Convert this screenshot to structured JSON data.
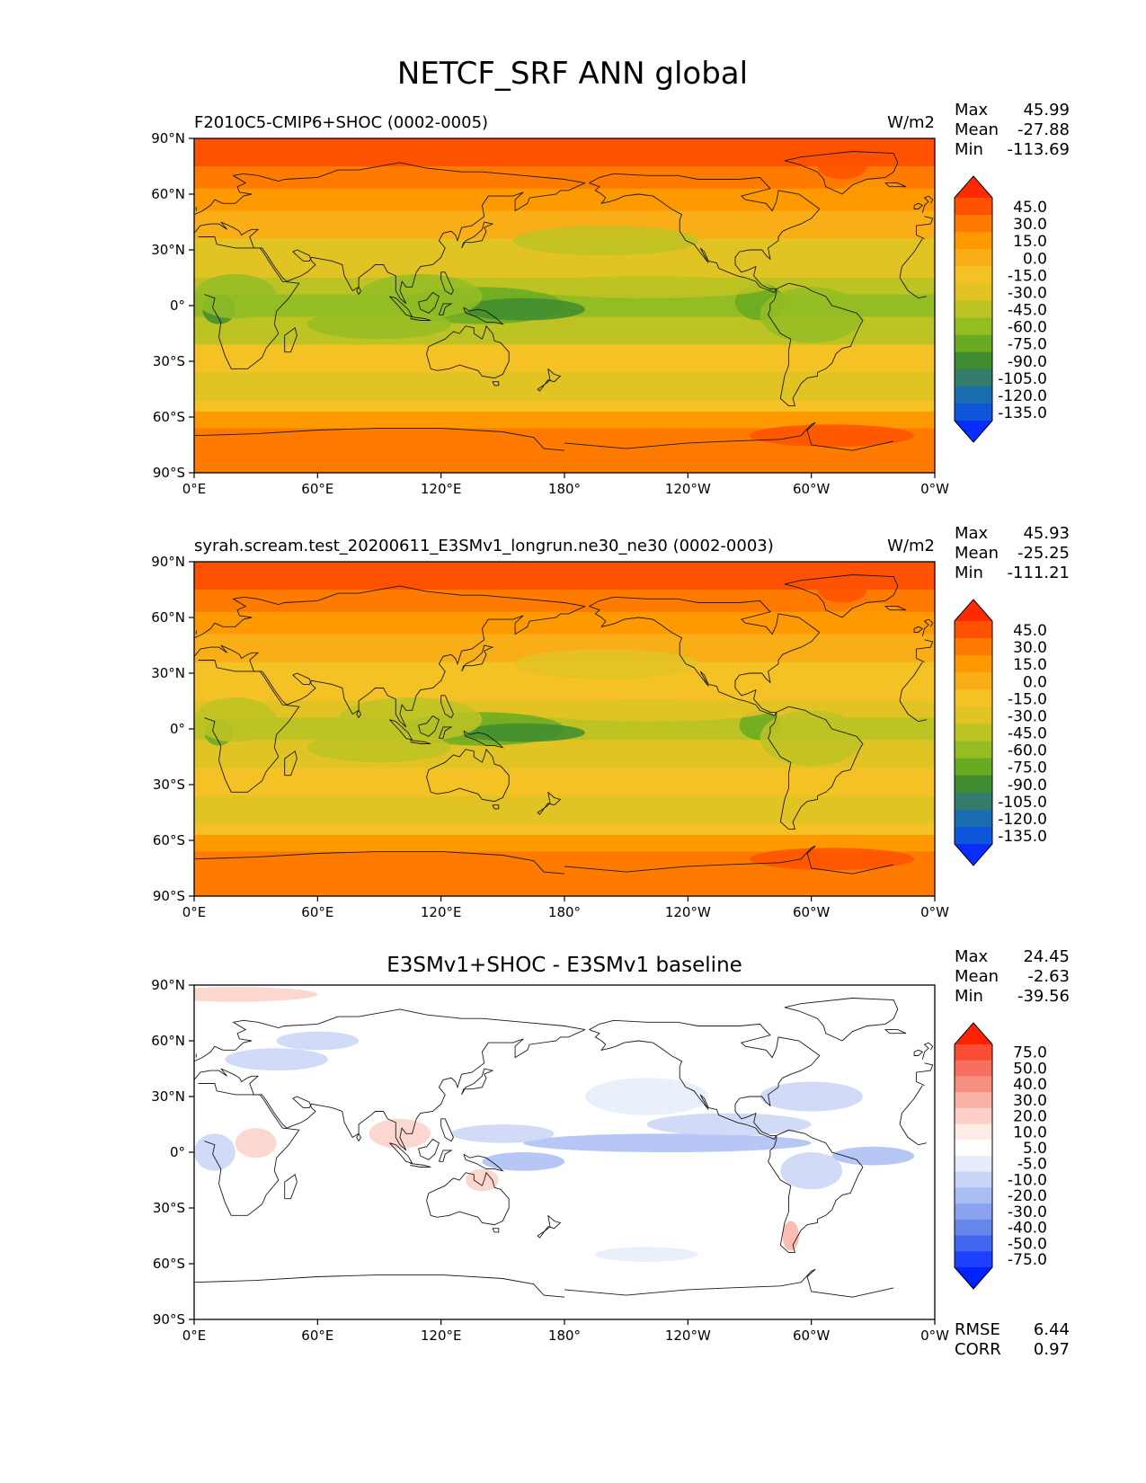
{
  "figure_title": "NETCF_SRF ANN global",
  "chart_data": [
    {
      "type": "heatmap",
      "map_projection": "PlateCarree",
      "title_left": "F2010C5-CMIP6+SHOC (0002-0005)",
      "units": "W/m2",
      "stats": [
        {
          "label": "Max",
          "value": "45.99"
        },
        {
          "label": "Mean",
          "value": "-27.88"
        },
        {
          "label": "Min",
          "value": "-113.69"
        }
      ],
      "x_ticks": [
        "0°E",
        "60°E",
        "120°E",
        "180°",
        "120°W",
        "60°W",
        "0°W"
      ],
      "y_ticks": [
        "90°N",
        "60°N",
        "30°N",
        "0°",
        "30°S",
        "60°S",
        "90°S"
      ],
      "colorbar_levels": [
        "45.0",
        "30.0",
        "15.0",
        "0.0",
        "-15.0",
        "-30.0",
        "-45.0",
        "-60.0",
        "-75.0",
        "-90.0",
        "-105.0",
        "-120.0",
        "-135.0"
      ],
      "colorbar_colors": [
        "#ff2a00",
        "#ff5200",
        "#ff7b00",
        "#ff9900",
        "#f9ae18",
        "#f4c224",
        "#e2c324",
        "#bec324",
        "#94bd24",
        "#69aa22",
        "#3f8c30",
        "#337c6a",
        "#1b6db1",
        "#0e55d9",
        "#0a2dff"
      ],
      "zonal_pattern": [
        {
          "lat": 90,
          "level": 1
        },
        {
          "lat": 75,
          "level": 2
        },
        {
          "lat": 62,
          "level": 3
        },
        {
          "lat": 50,
          "level": 4
        },
        {
          "lat": 35,
          "level": 6
        },
        {
          "lat": 15,
          "level": 7
        },
        {
          "lat": 5,
          "level": 8
        },
        {
          "lat": -5,
          "level": 7
        },
        {
          "lat": -20,
          "level": 5
        },
        {
          "lat": -35,
          "level": 6
        },
        {
          "lat": -50,
          "level": 5
        },
        {
          "lat": -58,
          "level": 3
        },
        {
          "lat": -65,
          "level": 2
        },
        {
          "lat": -90,
          "level": 2
        }
      ]
    },
    {
      "type": "heatmap",
      "map_projection": "PlateCarree",
      "title_left": "syrah.scream.test_20200611_E3SMv1_longrun.ne30_ne30 (0002-0003)",
      "units": "W/m2",
      "stats": [
        {
          "label": "Max",
          "value": "45.93"
        },
        {
          "label": "Mean",
          "value": "-25.25"
        },
        {
          "label": "Min",
          "value": "-111.21"
        }
      ],
      "x_ticks": [
        "0°E",
        "60°E",
        "120°E",
        "180°",
        "120°W",
        "60°W",
        "0°W"
      ],
      "y_ticks": [
        "90°N",
        "60°N",
        "30°N",
        "0°",
        "30°S",
        "60°S",
        "90°S"
      ],
      "colorbar_levels": [
        "45.0",
        "30.0",
        "15.0",
        "0.0",
        "-15.0",
        "-30.0",
        "-45.0",
        "-60.0",
        "-75.0",
        "-90.0",
        "-105.0",
        "-120.0",
        "-135.0"
      ],
      "colorbar_colors": [
        "#ff2a00",
        "#ff5200",
        "#ff7b00",
        "#ff9900",
        "#f9ae18",
        "#f4c224",
        "#e2c324",
        "#bec324",
        "#94bd24",
        "#69aa22",
        "#3f8c30",
        "#337c6a",
        "#1b6db1",
        "#0e55d9",
        "#0a2dff"
      ],
      "zonal_pattern": [
        {
          "lat": 90,
          "level": 1
        },
        {
          "lat": 75,
          "level": 2
        },
        {
          "lat": 62,
          "level": 3
        },
        {
          "lat": 50,
          "level": 4
        },
        {
          "lat": 35,
          "level": 5
        },
        {
          "lat": 15,
          "level": 6
        },
        {
          "lat": 5,
          "level": 7
        },
        {
          "lat": -5,
          "level": 6
        },
        {
          "lat": -20,
          "level": 5
        },
        {
          "lat": -35,
          "level": 6
        },
        {
          "lat": -50,
          "level": 5
        },
        {
          "lat": -58,
          "level": 3
        },
        {
          "lat": -65,
          "level": 2
        },
        {
          "lat": -90,
          "level": 2
        }
      ]
    },
    {
      "type": "heatmap",
      "map_projection": "PlateCarree",
      "title_center": "E3SMv1+SHOC - E3SMv1 baseline",
      "stats": [
        {
          "label": "Max",
          "value": "24.45"
        },
        {
          "label": "Mean",
          "value": "-2.63"
        },
        {
          "label": "Min",
          "value": "-39.56"
        }
      ],
      "bottom_stats": [
        {
          "label": "RMSE",
          "value": "6.44"
        },
        {
          "label": "CORR",
          "value": "0.97"
        }
      ],
      "x_ticks": [
        "0°E",
        "60°E",
        "120°E",
        "180°",
        "120°W",
        "60°W",
        "0°W"
      ],
      "y_ticks": [
        "90°N",
        "60°N",
        "30°N",
        "0°",
        "30°S",
        "60°S",
        "90°S"
      ],
      "colorbar_levels": [
        "75.0",
        "50.0",
        "40.0",
        "30.0",
        "20.0",
        "10.0",
        "5.0",
        "-5.0",
        "-10.0",
        "-20.0",
        "-30.0",
        "-40.0",
        "-50.0",
        "-75.0"
      ],
      "colorbar_colors": [
        "#ff2200",
        "#fa4d36",
        "#f76f5e",
        "#f89080",
        "#fab2a5",
        "#fcd0c8",
        "#feeae6",
        "#ffffff",
        "#e6ecfb",
        "#c9d5f7",
        "#a9bcf3",
        "#8aa2ef",
        "#6786ec",
        "#4166f0",
        "#1d3fff",
        "#0022ff"
      ],
      "zonal_pattern": [
        {
          "lat": 90,
          "level": 7
        },
        {
          "lat": -90,
          "level": 7
        }
      ]
    }
  ]
}
